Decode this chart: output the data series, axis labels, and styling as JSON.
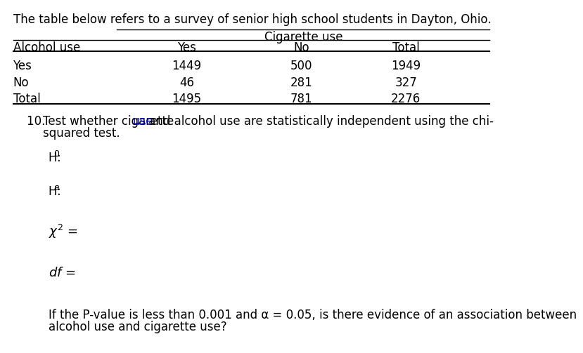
{
  "title_text": "The table below refers to a survey of senior high school students in Dayton, Ohio.",
  "cigarette_header": "Cigarette use",
  "table_data": [
    [
      "Yes",
      "1449",
      "500",
      "1949"
    ],
    [
      "No",
      "46",
      "281",
      "327"
    ],
    [
      "Total",
      "1495",
      "781",
      "2276"
    ]
  ],
  "pvalue_text_line1": "If the P-value is less than 0.001 and α = 0.05, is there evidence of an association between",
  "pvalue_text_line2": "alcohol use and cigarette use?",
  "bg_color": "#ffffff",
  "text_color": "#000000",
  "blue_color": "#0000CC",
  "font_size": 12
}
